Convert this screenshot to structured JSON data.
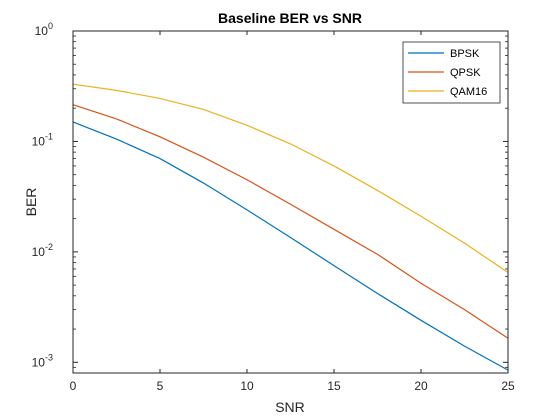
{
  "chart_data": {
    "type": "line",
    "title": "Baseline BER vs SNR",
    "xlabel": "SNR",
    "ylabel": "BER",
    "xlim": [
      0,
      25
    ],
    "ylim": [
      0.0008,
      1
    ],
    "yscale": "log",
    "grid": false,
    "legend_position": "top-right",
    "x_ticks": [
      0,
      5,
      10,
      15,
      20,
      25
    ],
    "x_tick_labels": [
      "0",
      "5",
      "10",
      "15",
      "20",
      "25"
    ],
    "y_ticks": [
      {
        "value": 1,
        "base": "10",
        "exp": "0"
      },
      {
        "value": 0.1,
        "base": "10",
        "exp": "-1"
      },
      {
        "value": 0.01,
        "base": "10",
        "exp": "-2"
      },
      {
        "value": 0.001,
        "base": "10",
        "exp": "-3"
      }
    ],
    "series": [
      {
        "name": "BPSK",
        "color": "#0072BD",
        "x": [
          0,
          2.5,
          5,
          7.5,
          10,
          12.5,
          15,
          17.5,
          20,
          22.5,
          25
        ],
        "y": [
          0.15,
          0.105,
          0.07,
          0.042,
          0.024,
          0.0135,
          0.0075,
          0.0042,
          0.0024,
          0.0014,
          0.00085
        ]
      },
      {
        "name": "QPSK",
        "color": "#D95319",
        "x": [
          0,
          2.5,
          5,
          7.5,
          10,
          12.5,
          15,
          17.5,
          20,
          22.5,
          25
        ],
        "y": [
          0.215,
          0.16,
          0.11,
          0.072,
          0.045,
          0.027,
          0.016,
          0.0095,
          0.0052,
          0.003,
          0.00165
        ]
      },
      {
        "name": "QAM16",
        "color": "#EDB120",
        "x": [
          0,
          2.5,
          5,
          7.5,
          10,
          12.5,
          15,
          17.5,
          20,
          22.5,
          25
        ],
        "y": [
          0.33,
          0.29,
          0.245,
          0.195,
          0.14,
          0.095,
          0.06,
          0.036,
          0.021,
          0.012,
          0.0065
        ]
      }
    ]
  }
}
